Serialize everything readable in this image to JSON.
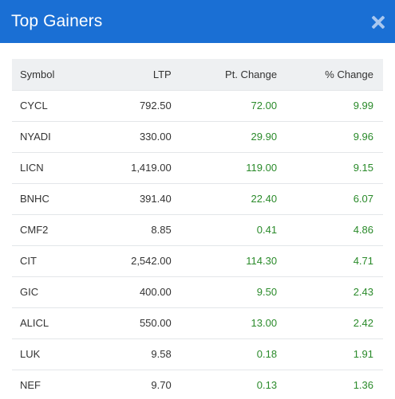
{
  "modal": {
    "title": "Top Gainers",
    "close_icon": "close-icon"
  },
  "table": {
    "headers": {
      "symbol": "Symbol",
      "ltp": "LTP",
      "pt_change": "Pt. Change",
      "pct_change": "% Change"
    },
    "rows": [
      {
        "symbol": "CYCL",
        "ltp": "792.50",
        "pt_change": "72.00",
        "pct_change": "9.99"
      },
      {
        "symbol": "NYADI",
        "ltp": "330.00",
        "pt_change": "29.90",
        "pct_change": "9.96"
      },
      {
        "symbol": "LICN",
        "ltp": "1,419.00",
        "pt_change": "119.00",
        "pct_change": "9.15"
      },
      {
        "symbol": "BNHC",
        "ltp": "391.40",
        "pt_change": "22.40",
        "pct_change": "6.07"
      },
      {
        "symbol": "CMF2",
        "ltp": "8.85",
        "pt_change": "0.41",
        "pct_change": "4.86"
      },
      {
        "symbol": "CIT",
        "ltp": "2,542.00",
        "pt_change": "114.30",
        "pct_change": "4.71"
      },
      {
        "symbol": "GIC",
        "ltp": "400.00",
        "pt_change": "9.50",
        "pct_change": "2.43"
      },
      {
        "symbol": "ALICL",
        "ltp": "550.00",
        "pt_change": "13.00",
        "pct_change": "2.42"
      },
      {
        "symbol": "LUK",
        "ltp": "9.58",
        "pt_change": "0.18",
        "pct_change": "1.91"
      },
      {
        "symbol": "NEF",
        "ltp": "9.70",
        "pt_change": "0.13",
        "pct_change": "1.36"
      }
    ]
  },
  "colors": {
    "header_bg": "#1a6fd4",
    "positive": "#2a8a2a",
    "table_head_bg": "#eef0f2"
  }
}
